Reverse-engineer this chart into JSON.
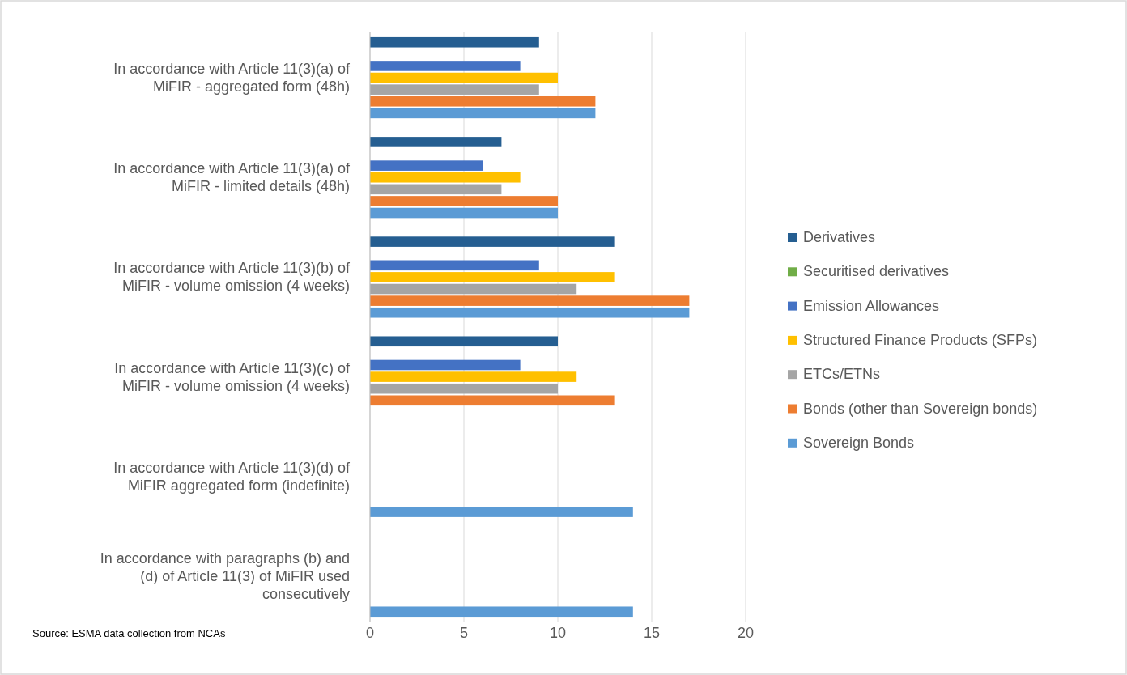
{
  "chart_data": {
    "type": "bar",
    "orientation": "horizontal",
    "categories": [
      "In accordance with Article 11(3)(a) of MiFIR - aggregated form (48h)",
      "In accordance with Article 11(3)(a) of MiFIR - limited details (48h)",
      "In accordance with Article 11(3)(b) of MiFIR - volume omission (4 weeks)",
      "In accordance with Article 11(3)(c) of MiFIR - volume omission (4 weeks)",
      "In accordance with Article 11(3)(d) of MiFIR aggregated form (indefinite)",
      "In accordance with paragraphs (b) and (d) of Article 11(3) of MiFIR used consecutively"
    ],
    "series": [
      {
        "name": "Derivatives",
        "color": "#255e91",
        "values": [
          9,
          7,
          13,
          10,
          null,
          null
        ]
      },
      {
        "name": "Securitised derivatives",
        "color": "#70ad47",
        "values": [
          null,
          null,
          null,
          null,
          null,
          null
        ]
      },
      {
        "name": "Emission Allowances",
        "color": "#4472c4",
        "values": [
          8,
          6,
          9,
          8,
          null,
          null
        ]
      },
      {
        "name": "Structured Finance Products (SFPs)",
        "color": "#ffc000",
        "values": [
          10,
          8,
          13,
          11,
          null,
          null
        ]
      },
      {
        "name": "ETCs/ETNs",
        "color": "#a5a5a5",
        "values": [
          9,
          7,
          11,
          10,
          null,
          null
        ]
      },
      {
        "name": "Bonds (other than Sovereign bonds)",
        "color": "#ed7d31",
        "values": [
          12,
          10,
          17,
          13,
          null,
          null
        ]
      },
      {
        "name": "Sovereign Bonds",
        "color": "#5b9bd5",
        "values": [
          12,
          10,
          17,
          null,
          14,
          14
        ]
      }
    ],
    "xlim": [
      0,
      20
    ],
    "xticks": [
      0,
      5,
      10,
      15,
      20
    ],
    "grid": "x",
    "legend": "right",
    "annotations": [
      "Source: ESMA data collection from NCAs"
    ]
  }
}
